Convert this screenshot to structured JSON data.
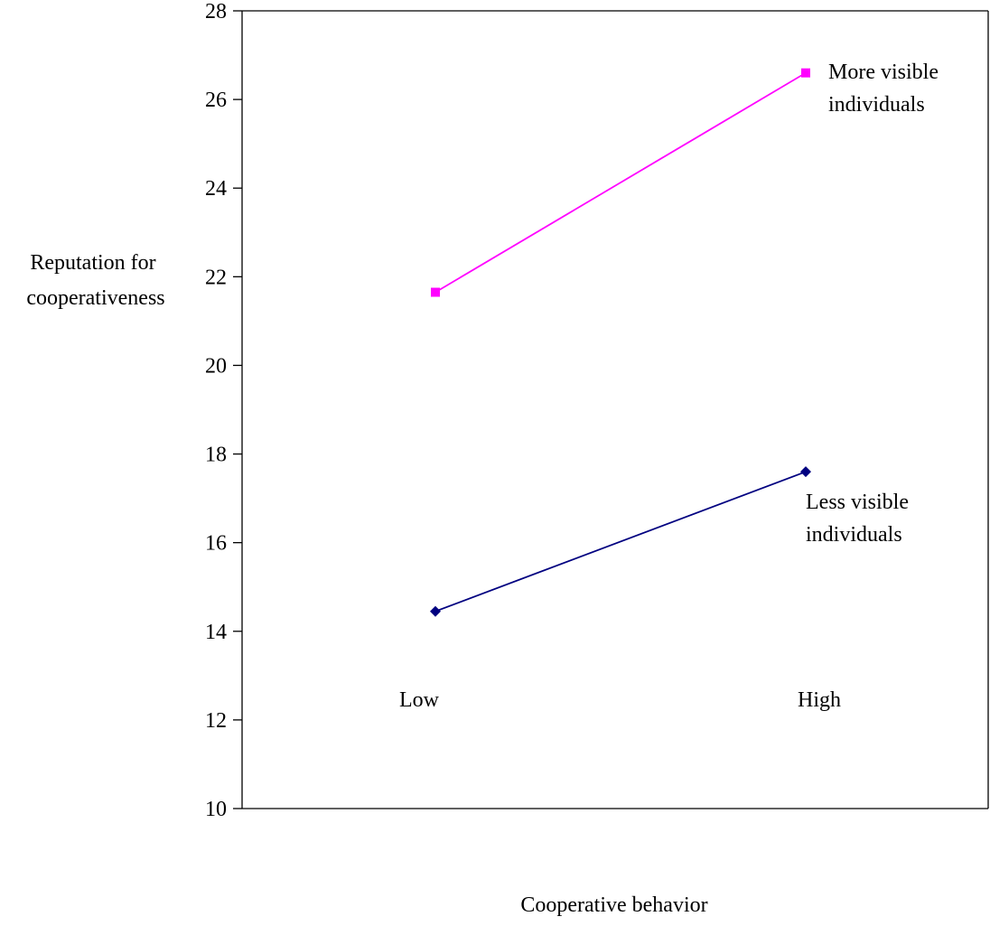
{
  "chart_data": {
    "type": "line",
    "title": "",
    "xlabel": "Cooperative behavior",
    "ylabel_lines": [
      "Reputation for",
      "cooperativeness"
    ],
    "categories": [
      "Low",
      "High"
    ],
    "ylim": [
      10,
      28
    ],
    "yticks": [
      "10",
      "12",
      "14",
      "16",
      "18",
      "20",
      "22",
      "24",
      "26",
      "28"
    ],
    "grid": false,
    "series": [
      {
        "name": "More visible individuals",
        "label_lines": [
          "More visible",
          "individuals"
        ],
        "values": [
          21.65,
          26.6
        ],
        "color": "#FF00FF",
        "marker": "square"
      },
      {
        "name": "Less visible individuals",
        "label_lines": [
          "Less visible",
          "individuals"
        ],
        "values": [
          14.45,
          17.6
        ],
        "color": "#000080",
        "marker": "diamond"
      }
    ]
  }
}
